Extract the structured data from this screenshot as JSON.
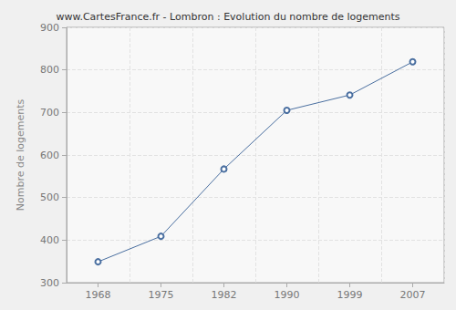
{
  "chart_data": {
    "type": "line",
    "title": "www.CartesFrance.fr - Lombron : Evolution du nombre de logements",
    "y_label": "Nombre de logements",
    "categories": [
      "1968",
      "1975",
      "1982",
      "1990",
      "1999",
      "2007"
    ],
    "values": [
      349,
      409,
      567,
      705,
      741,
      819
    ],
    "color": "#4a6fa0",
    "marker": "circle",
    "ylim": [
      300,
      900
    ],
    "yticks": [
      300,
      400,
      500,
      600,
      700,
      800,
      900
    ],
    "grid": true
  }
}
